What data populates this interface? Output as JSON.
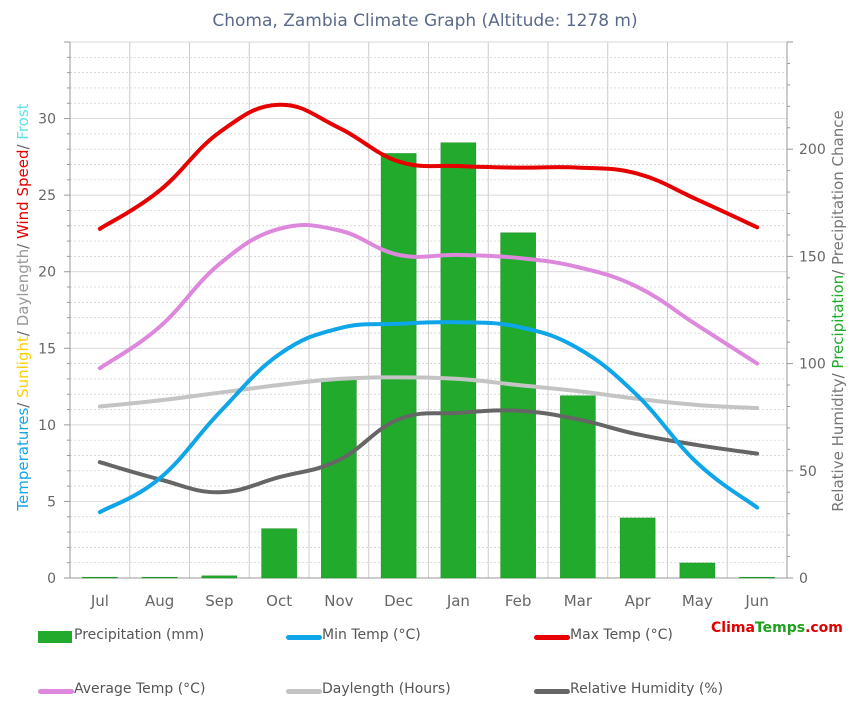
{
  "colors": {
    "precip": "#22aa2c",
    "min_temp": "#0ea5e9",
    "max_temp": "#e60000",
    "avg_temp": "#dd88dd",
    "daylength": "#c4c4c4",
    "humidity": "#666666",
    "title": "#5a6a8a",
    "grid": "#cccccc",
    "axis_text": "#666666",
    "brand_red": "#e00000",
    "brand_green": "#1fa01f"
  },
  "left_axis_parts": [
    {
      "text": "Temperatures",
      "color": "#16a5e6"
    },
    {
      "text": "/ ",
      "color": "#666666"
    },
    {
      "text": "Sunlight",
      "color": "#ffd000"
    },
    {
      "text": "/ ",
      "color": "#666666"
    },
    {
      "text": "Daylength",
      "color": "#999999"
    },
    {
      "text": "/ ",
      "color": "#666666"
    },
    {
      "text": "Wind Speed",
      "color": "#e60000"
    },
    {
      "text": "/ ",
      "color": "#666666"
    },
    {
      "text": "Frost",
      "color": "#5ee0f0"
    }
  ],
  "right_axis_parts": [
    {
      "text": "Relative Humidity",
      "color": "#777777"
    },
    {
      "text": "/ ",
      "color": "#666666"
    },
    {
      "text": "Precipitation",
      "color": "#22aa2c"
    },
    {
      "text": "/ ",
      "color": "#666666"
    },
    {
      "text": "Precipitation Chance",
      "color": "#777777"
    }
  ],
  "legend": {
    "precip": "Precipitation (mm)",
    "min_temp": "Min Temp (°C)",
    "max_temp": "Max Temp (°C)",
    "avg_temp": "Average Temp (°C)",
    "daylength": "Daylength (Hours)",
    "humidity": "Relative Humidity (%)"
  },
  "brand": {
    "part1": "Clima",
    "part2": "Temps",
    "part3": ".com"
  },
  "chart_data": {
    "type": "bar",
    "title": "Choma, Zambia Climate Graph (Altitude: 1278 m)",
    "categories": [
      "Jul",
      "Aug",
      "Sep",
      "Oct",
      "Nov",
      "Dec",
      "Jan",
      "Feb",
      "Mar",
      "Apr",
      "May",
      "Jun"
    ],
    "left_axis": {
      "ylim": [
        0,
        35
      ],
      "ticks": [
        0,
        5,
        10,
        15,
        20,
        25,
        30
      ]
    },
    "right_axis": {
      "ylim": [
        0,
        250
      ],
      "ticks": [
        0,
        50,
        100,
        150,
        200
      ]
    },
    "grid": true,
    "bars": {
      "name": "Precipitation (mm)",
      "axis": "right",
      "values": [
        0,
        0,
        1,
        23,
        93,
        198,
        203,
        161,
        85,
        28,
        7,
        0
      ]
    },
    "series": [
      {
        "name": "Min Temp (°C)",
        "axis": "left",
        "key": "min_temp",
        "values": [
          4.3,
          6.5,
          10.8,
          14.6,
          16.3,
          16.6,
          16.7,
          16.4,
          15.0,
          11.9,
          7.5,
          4.6
        ]
      },
      {
        "name": "Max Temp (°C)",
        "axis": "left",
        "key": "max_temp",
        "values": [
          22.8,
          25.3,
          29.1,
          30.9,
          29.4,
          27.2,
          26.9,
          26.8,
          26.8,
          26.4,
          24.7,
          22.9
        ]
      },
      {
        "name": "Average Temp (°C)",
        "axis": "left",
        "key": "avg_temp",
        "values": [
          13.7,
          16.4,
          20.5,
          22.8,
          22.7,
          21.1,
          21.1,
          20.9,
          20.3,
          19.0,
          16.5,
          14.0
        ]
      },
      {
        "name": "Daylength (Hours)",
        "axis": "left",
        "key": "daylength",
        "values": [
          11.2,
          11.6,
          12.1,
          12.6,
          13.0,
          13.1,
          13.0,
          12.6,
          12.2,
          11.7,
          11.3,
          11.1
        ]
      },
      {
        "name": "Relative Humidity (%)",
        "axis": "right",
        "key": "humidity",
        "values": [
          54,
          46,
          40,
          47,
          55,
          74,
          77,
          78,
          74,
          67,
          62,
          58
        ]
      }
    ]
  }
}
